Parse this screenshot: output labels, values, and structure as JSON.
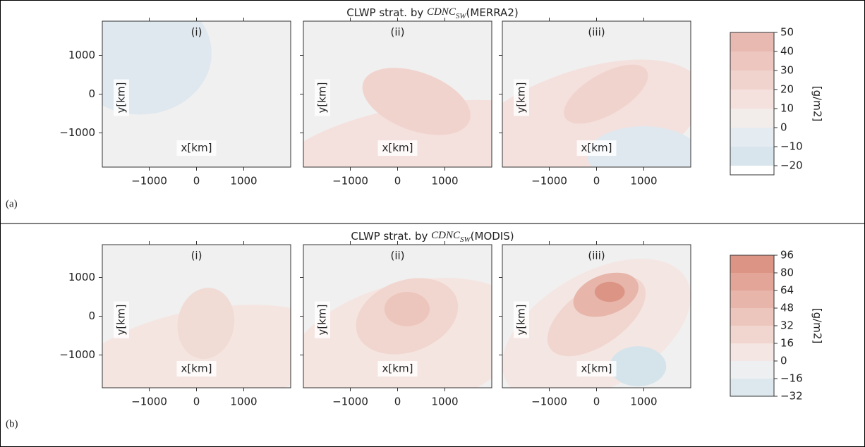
{
  "rows": [
    {
      "label": "(a)",
      "title": {
        "pre": "CLWP strat. by ",
        "math": "CDNC",
        "sub": "SW",
        "post": "(MERRA2)"
      },
      "panels": [
        {
          "label": "(i)",
          "xlabel": "x[km]",
          "ylabel": "y[km]"
        },
        {
          "label": "(ii)",
          "xlabel": "x[km]",
          "ylabel": "y[km]"
        },
        {
          "label": "(iii)",
          "xlabel": "x[km]",
          "ylabel": "y[km]"
        }
      ],
      "xticks": [
        "−1000",
        "0",
        "1000"
      ],
      "yticks": [
        "1000",
        "0",
        "−1000"
      ],
      "colorbar": {
        "label": "[g/m2]",
        "ticks": [
          "50",
          "40",
          "30",
          "20",
          "10",
          "0",
          "−10",
          "−20"
        ]
      }
    },
    {
      "label": "(b)",
      "title": {
        "pre": "CLWP strat. by ",
        "math": "CDNC",
        "sub": "SW",
        "post": "(MODIS)"
      },
      "panels": [
        {
          "label": "(i)",
          "xlabel": "x[km]",
          "ylabel": "y[km]"
        },
        {
          "label": "(ii)",
          "xlabel": "x[km]",
          "ylabel": "y[km]"
        },
        {
          "label": "(iii)",
          "xlabel": "x[km]",
          "ylabel": "y[km]"
        }
      ],
      "xticks": [
        "−1000",
        "0",
        "1000"
      ],
      "yticks": [
        "1000",
        "0",
        "−1000"
      ],
      "colorbar": {
        "label": "[g/m2]",
        "ticks": [
          "96",
          "80",
          "64",
          "48",
          "32",
          "16",
          "0",
          "−16",
          "−32"
        ]
      }
    }
  ]
}
